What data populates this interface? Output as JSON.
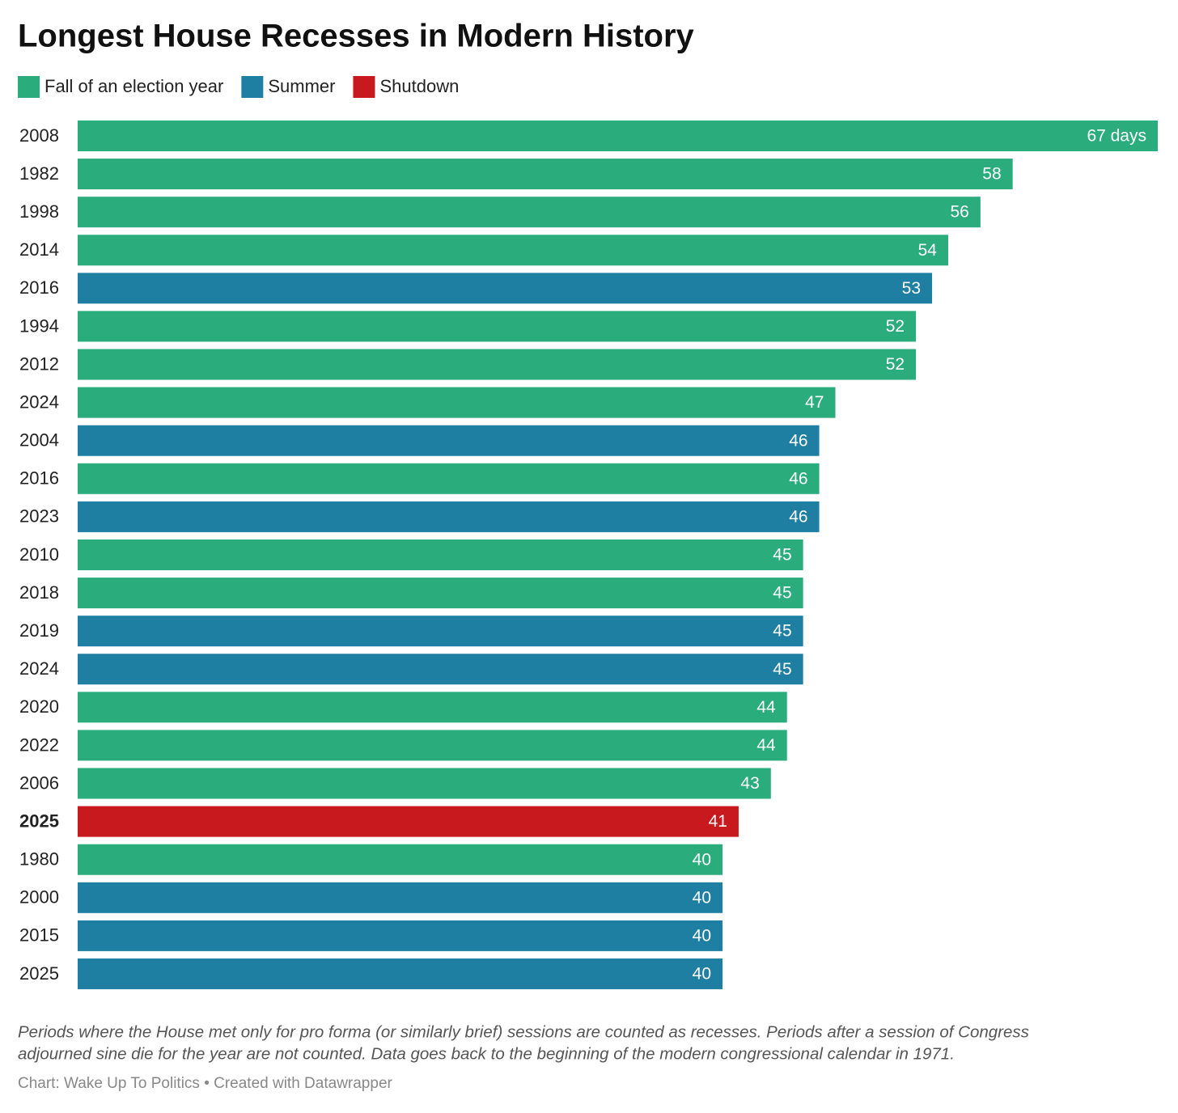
{
  "chart_data": {
    "type": "bar",
    "orientation": "horizontal",
    "title": "Longest House Recesses in Modern History",
    "categories": [
      "2008",
      "1982",
      "1998",
      "2014",
      "2016",
      "1994",
      "2012",
      "2024",
      "2004",
      "2016",
      "2023",
      "2010",
      "2018",
      "2019",
      "2024",
      "2020",
      "2022",
      "2006",
      "2025",
      "1980",
      "2000",
      "2015",
      "2025"
    ],
    "series": [
      {
        "name": "Fall of an election year",
        "color": "#2aac7d",
        "values": [
          67,
          58,
          56,
          54,
          null,
          52,
          52,
          47,
          null,
          46,
          null,
          45,
          45,
          null,
          null,
          44,
          44,
          43,
          null,
          40,
          null,
          null,
          null
        ],
        "value_labels": [
          "67 days",
          "58",
          "56",
          "54",
          null,
          "52",
          "52",
          "47",
          null,
          "46",
          null,
          "45",
          "45",
          null,
          null,
          "44",
          "44",
          "43",
          null,
          "40",
          null,
          null,
          null
        ]
      },
      {
        "name": "Summer",
        "color": "#1f7fa3",
        "values": [
          null,
          null,
          null,
          null,
          53,
          null,
          null,
          null,
          46,
          null,
          46,
          null,
          null,
          45,
          45,
          null,
          null,
          null,
          null,
          null,
          40,
          40,
          40
        ],
        "value_labels": [
          null,
          null,
          null,
          null,
          "53",
          null,
          null,
          null,
          "46",
          null,
          "46",
          null,
          null,
          "45",
          "45",
          null,
          null,
          null,
          null,
          null,
          "40",
          "40",
          "40"
        ]
      },
      {
        "name": "Shutdown",
        "color": "#c8191f",
        "values": [
          null,
          null,
          null,
          null,
          null,
          null,
          null,
          null,
          null,
          null,
          null,
          null,
          null,
          null,
          null,
          null,
          null,
          null,
          41,
          null,
          null,
          null,
          null
        ],
        "value_labels": [
          null,
          null,
          null,
          null,
          null,
          null,
          null,
          null,
          null,
          null,
          null,
          null,
          null,
          null,
          null,
          null,
          null,
          null,
          "41",
          null,
          null,
          null,
          null
        ]
      }
    ],
    "notes": [
      "Periods where the House met only for pro forma (or similarly brief) sessions are counted as recesses. Periods after a session of Congress",
      "adjourned sine die for the year are not counted. Data goes back to the beginning of the modern congressional calendar in 1971."
    ],
    "source": "Chart: Wake Up To Politics • Created with Datawrapper"
  }
}
